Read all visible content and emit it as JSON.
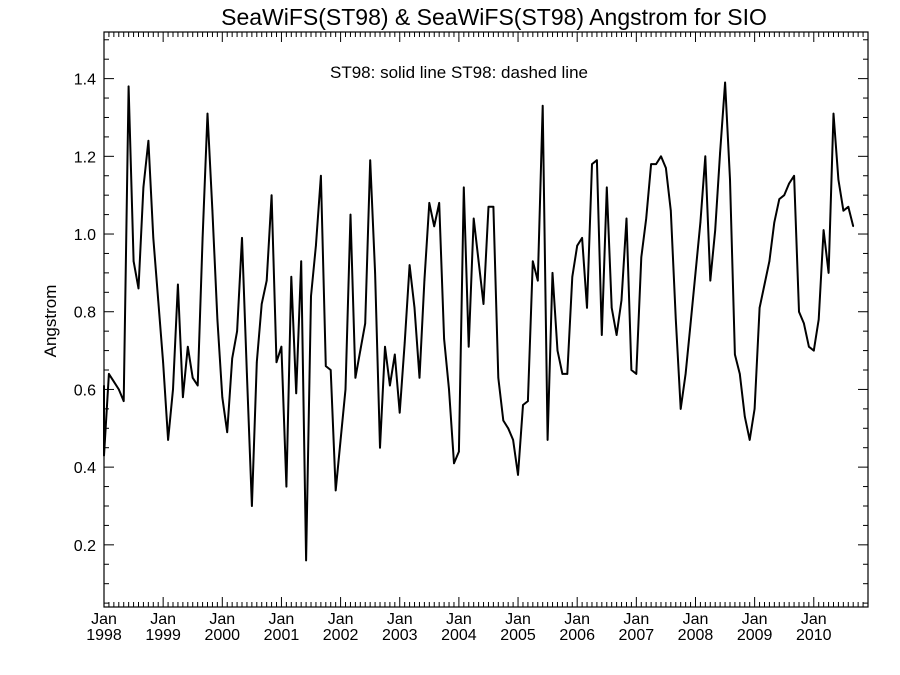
{
  "chart_data": {
    "type": "line",
    "title": "SeaWiFS(ST98) & SeaWiFS(ST98)  Angstrom for SIO",
    "annotation": "ST98: solid line   ST98: dashed line",
    "xlabel": "",
    "ylabel": "Angstrom",
    "xlim": [
      "1998-01",
      "2010-12"
    ],
    "ylim": [
      0.04,
      1.52
    ],
    "yticks": [
      "0.2",
      "0.4",
      "0.6",
      "0.8",
      "1.0",
      "1.2",
      "1.4"
    ],
    "xticks": [
      {
        "month": "Jan",
        "year": "1998"
      },
      {
        "month": "Jan",
        "year": "1999"
      },
      {
        "month": "Jan",
        "year": "2000"
      },
      {
        "month": "Jan",
        "year": "2001"
      },
      {
        "month": "Jan",
        "year": "2002"
      },
      {
        "month": "Jan",
        "year": "2003"
      },
      {
        "month": "Jan",
        "year": "2004"
      },
      {
        "month": "Jan",
        "year": "2005"
      },
      {
        "month": "Jan",
        "year": "2006"
      },
      {
        "month": "Jan",
        "year": "2007"
      },
      {
        "month": "Jan",
        "year": "2008"
      },
      {
        "month": "Jan",
        "year": "2009"
      },
      {
        "month": "Jan",
        "year": "2010"
      }
    ],
    "grid": false,
    "series": [
      {
        "line_style": "solid",
        "color": "#000000",
        "points": [
          [
            "1998-01",
            0.61
          ],
          [
            "1998-01",
            0.43
          ],
          [
            "1998-02",
            0.64
          ],
          [
            "1998-03",
            0.62
          ],
          [
            "1998-04",
            0.6
          ],
          [
            "1998-05",
            0.57
          ],
          [
            "1998-06",
            1.38
          ],
          [
            "1998-07",
            0.93
          ],
          [
            "1998-08",
            0.86
          ],
          [
            "1998-09",
            1.12
          ],
          [
            "1998-10",
            1.24
          ],
          [
            "1998-11",
            0.99
          ],
          [
            "1998-12",
            0.83
          ],
          [
            "1999-01",
            0.67
          ],
          [
            "1999-02",
            0.47
          ],
          [
            "1999-03",
            0.6
          ],
          [
            "1999-04",
            0.87
          ],
          [
            "1999-05",
            0.58
          ],
          [
            "1999-06",
            0.71
          ],
          [
            "1999-07",
            0.63
          ],
          [
            "1999-08",
            0.61
          ],
          [
            "1999-09",
            0.99
          ],
          [
            "1999-10",
            1.31
          ],
          [
            "1999-11",
            1.06
          ],
          [
            "1999-12",
            0.78
          ],
          [
            "2000-01",
            0.58
          ],
          [
            "2000-02",
            0.49
          ],
          [
            "2000-03",
            0.68
          ],
          [
            "2000-04",
            0.75
          ],
          [
            "2000-05",
            0.99
          ],
          [
            "2000-06",
            0.64
          ],
          [
            "2000-07",
            0.3
          ],
          [
            "2000-08",
            0.67
          ],
          [
            "2000-09",
            0.82
          ],
          [
            "2000-10",
            0.88
          ],
          [
            "2000-11",
            1.1
          ],
          [
            "2000-12",
            0.67
          ],
          [
            "2001-01",
            0.71
          ],
          [
            "2001-02",
            0.35
          ],
          [
            "2001-03",
            0.89
          ],
          [
            "2001-04",
            0.59
          ],
          [
            "2001-05",
            0.93
          ],
          [
            "2001-06",
            0.16
          ],
          [
            "2001-07",
            0.84
          ],
          [
            "2001-08",
            0.97
          ],
          [
            "2001-09",
            1.15
          ],
          [
            "2001-10",
            0.66
          ],
          [
            "2001-11",
            0.65
          ],
          [
            "2001-12",
            0.34
          ],
          [
            "2002-01",
            0.47
          ],
          [
            "2002-02",
            0.6
          ],
          [
            "2002-03",
            1.05
          ],
          [
            "2002-04",
            0.63
          ],
          [
            "2002-05",
            0.7
          ],
          [
            "2002-06",
            0.77
          ],
          [
            "2002-07",
            1.19
          ],
          [
            "2002-08",
            0.9
          ],
          [
            "2002-09",
            0.45
          ],
          [
            "2002-10",
            0.71
          ],
          [
            "2002-11",
            0.61
          ],
          [
            "2002-12",
            0.69
          ],
          [
            "2003-01",
            0.54
          ],
          [
            "2003-02",
            0.72
          ],
          [
            "2003-03",
            0.92
          ],
          [
            "2003-04",
            0.81
          ],
          [
            "2003-05",
            0.63
          ],
          [
            "2003-06",
            0.88
          ],
          [
            "2003-07",
            1.08
          ],
          [
            "2003-08",
            1.02
          ],
          [
            "2003-09",
            1.08
          ],
          [
            "2003-10",
            0.73
          ],
          [
            "2003-11",
            0.6
          ],
          [
            "2003-12",
            0.41
          ],
          [
            "2004-01",
            0.44
          ],
          [
            "2004-02",
            1.12
          ],
          [
            "2004-03",
            0.71
          ],
          [
            "2004-04",
            1.04
          ],
          [
            "2004-05",
            0.93
          ],
          [
            "2004-06",
            0.82
          ],
          [
            "2004-07",
            1.07
          ],
          [
            "2004-08",
            1.07
          ],
          [
            "2004-09",
            0.63
          ],
          [
            "2004-10",
            0.52
          ],
          [
            "2004-11",
            0.5
          ],
          [
            "2004-12",
            0.47
          ],
          [
            "2005-01",
            0.38
          ],
          [
            "2005-02",
            0.56
          ],
          [
            "2005-03",
            0.57
          ],
          [
            "2005-04",
            0.93
          ],
          [
            "2005-05",
            0.88
          ],
          [
            "2005-06",
            1.33
          ],
          [
            "2005-07",
            0.47
          ],
          [
            "2005-08",
            0.9
          ],
          [
            "2005-09",
            0.7
          ],
          [
            "2005-10",
            0.64
          ],
          [
            "2005-11",
            0.64
          ],
          [
            "2005-12",
            0.89
          ],
          [
            "2006-01",
            0.97
          ],
          [
            "2006-02",
            0.99
          ],
          [
            "2006-03",
            0.81
          ],
          [
            "2006-04",
            1.18
          ],
          [
            "2006-05",
            1.19
          ],
          [
            "2006-06",
            0.74
          ],
          [
            "2006-07",
            1.12
          ],
          [
            "2006-08",
            0.81
          ],
          [
            "2006-09",
            0.74
          ],
          [
            "2006-10",
            0.83
          ],
          [
            "2006-11",
            1.04
          ],
          [
            "2006-12",
            0.65
          ],
          [
            "2007-01",
            0.64
          ],
          [
            "2007-02",
            0.94
          ],
          [
            "2007-03",
            1.04
          ],
          [
            "2007-04",
            1.18
          ],
          [
            "2007-05",
            1.18
          ],
          [
            "2007-06",
            1.2
          ],
          [
            "2007-07",
            1.17
          ],
          [
            "2007-08",
            1.06
          ],
          [
            "2007-09",
            0.78
          ],
          [
            "2007-10",
            0.55
          ],
          [
            "2007-11",
            0.64
          ],
          [
            "2007-12",
            0.77
          ],
          [
            "2008-01",
            0.9
          ],
          [
            "2008-02",
            1.03
          ],
          [
            "2008-03",
            1.2
          ],
          [
            "2008-04",
            0.88
          ],
          [
            "2008-05",
            1.01
          ],
          [
            "2008-06",
            1.21
          ],
          [
            "2008-07",
            1.39
          ],
          [
            "2008-08",
            1.14
          ],
          [
            "2008-09",
            0.69
          ],
          [
            "2008-10",
            0.64
          ],
          [
            "2008-11",
            0.53
          ],
          [
            "2008-12",
            0.47
          ],
          [
            "2009-01",
            0.55
          ],
          [
            "2009-02",
            0.81
          ],
          [
            "2009-03",
            0.87
          ],
          [
            "2009-04",
            0.93
          ],
          [
            "2009-05",
            1.03
          ],
          [
            "2009-06",
            1.09
          ],
          [
            "2009-07",
            1.1
          ],
          [
            "2009-08",
            1.13
          ],
          [
            "2009-09",
            1.15
          ],
          [
            "2009-10",
            0.8
          ],
          [
            "2009-11",
            0.77
          ],
          [
            "2009-12",
            0.71
          ],
          [
            "2010-01",
            0.7
          ],
          [
            "2010-02",
            0.78
          ],
          [
            "2010-03",
            1.01
          ],
          [
            "2010-04",
            0.9
          ],
          [
            "2010-05",
            1.31
          ],
          [
            "2010-06",
            1.14
          ],
          [
            "2010-07",
            1.06
          ],
          [
            "2010-08",
            1.07
          ],
          [
            "2010-09",
            1.02
          ]
        ]
      }
    ]
  }
}
